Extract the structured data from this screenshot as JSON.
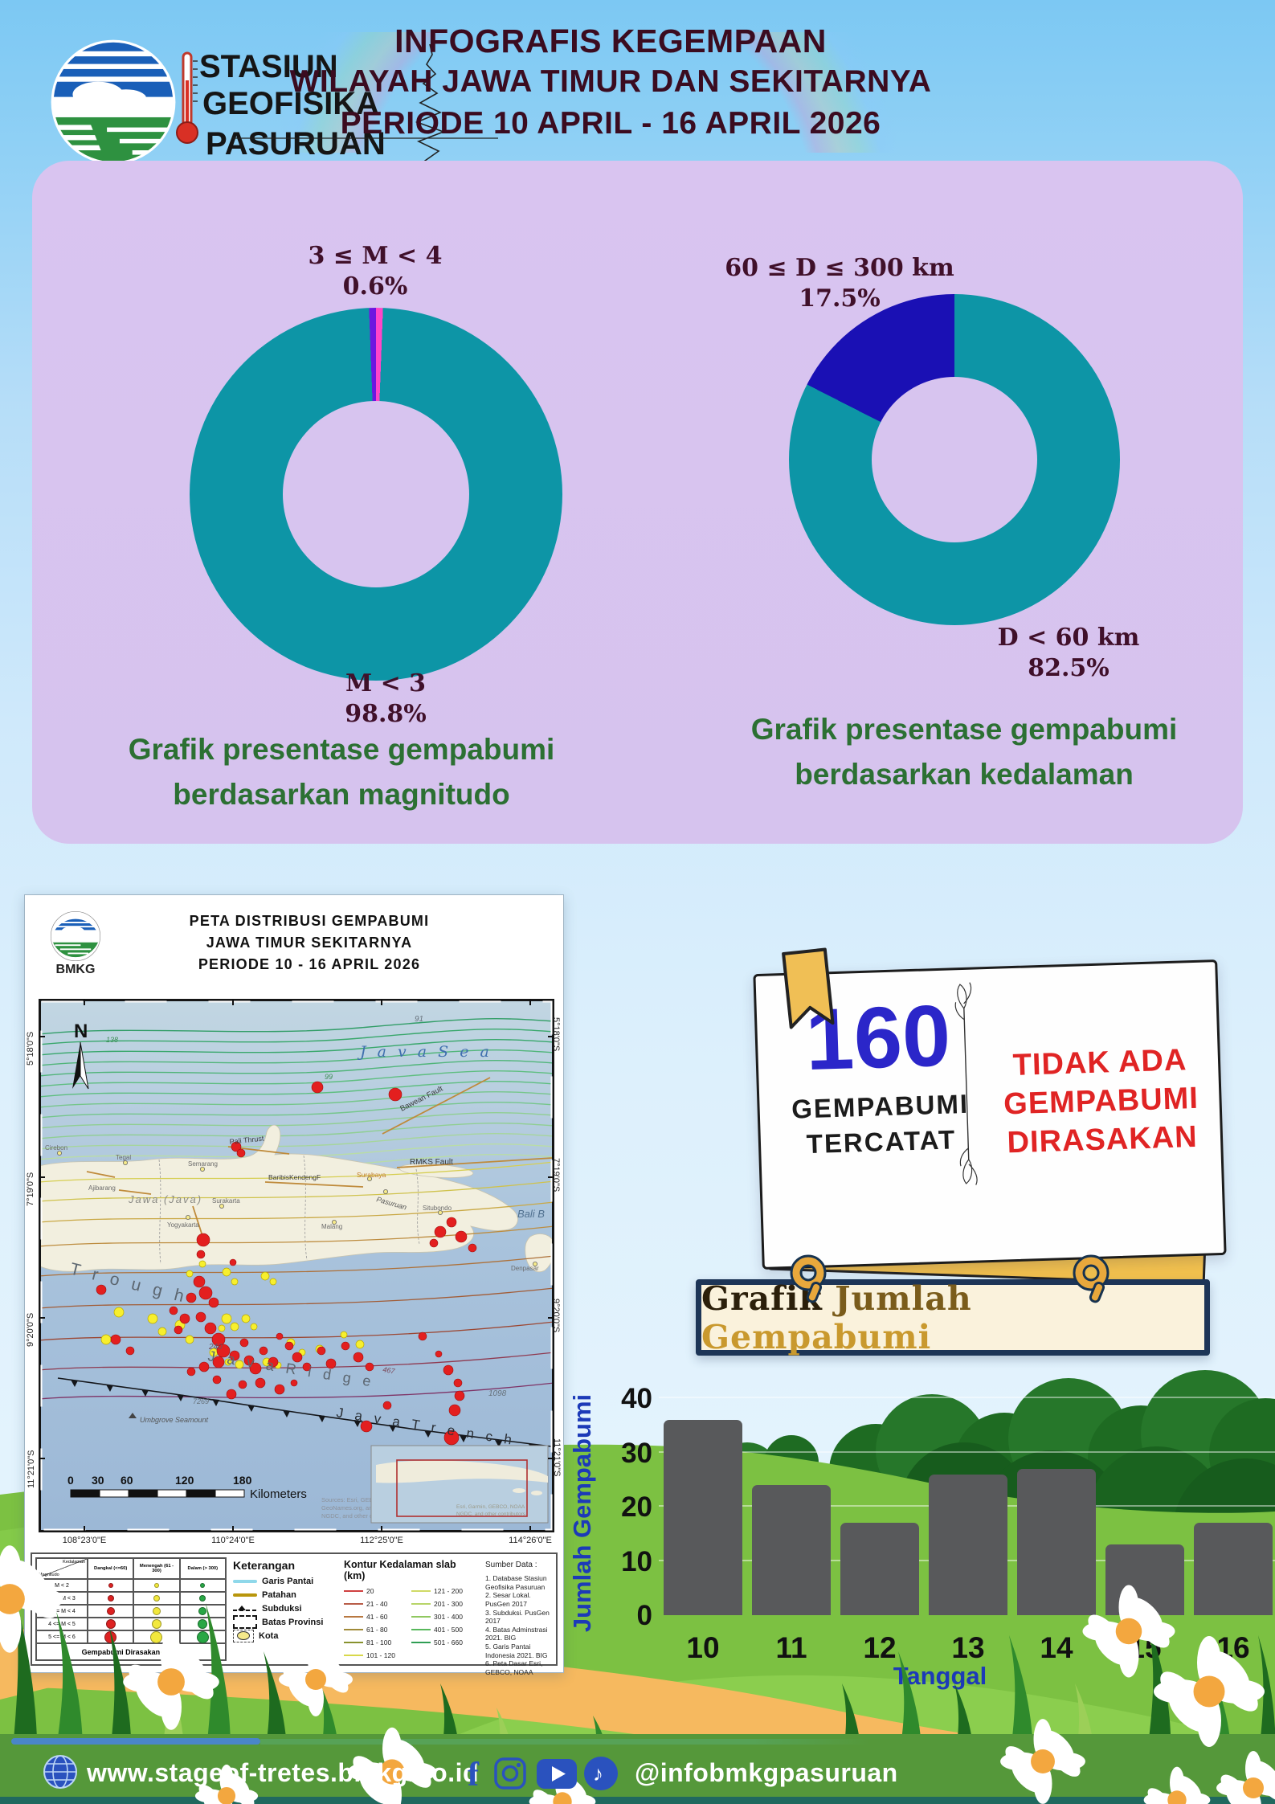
{
  "header": {
    "logo_text": "BMKG",
    "station": {
      "line1": "STASIUN",
      "line2": "GEOFISIKA",
      "line3": "PASURUAN"
    },
    "title": {
      "line1": "INFOGRAFIS KEGEMPAAN",
      "line2": "WILAYAH JAWA TIMUR DAN SEKITARNYA",
      "line3": "PERIODE 10 APRIL - 16 APRIL 2026"
    }
  },
  "donut_panel": {
    "magnitude": {
      "label_top_line1": "3 ≤ M < 4",
      "label_top_line2": "0.6%",
      "label_bottom_line1": "M < 3",
      "label_bottom_line2": "98.8%",
      "caption_line1": "Grafik presentase gempabumi",
      "caption_line2": "berdasarkan magnitudo"
    },
    "depth": {
      "label_top_line1": "60 ≤ D ≤ 300 km",
      "label_top_line2": "17.5%",
      "label_bottom_line1": "D < 60 km",
      "label_bottom_line2": "82.5%",
      "caption_line1": "Grafik presentase gempabumi",
      "caption_line2": "berdasarkan kedalaman"
    }
  },
  "map": {
    "logo_text": "BMKG",
    "title_line1": "PETA DISTRIBUSI GEMPABUMI",
    "title_line2": "JAWA TIMUR SEKITARNYA",
    "title_line3": "PERIODE 10 - 16 APRIL 2026",
    "compass": "N",
    "sea_label": "J a v a   S e a",
    "labels": {
      "bawean": "Bawean Fault",
      "rmks": "RMKS Fault",
      "pali": "Pali Thrust",
      "kendeng": "BaribisKendengF",
      "jawa": "Jawa (Java)",
      "trough": "T r o u g h",
      "ridge": "J a v a   R i d g e",
      "trench": "J a v a   T r e n c h",
      "seamount": "Umbgrove Seamount",
      "bali": "Bali B",
      "pasuruan": "Pasuruan"
    },
    "cities": [
      "Cirebon",
      "Tegal",
      "Ajibarang",
      "Semarang",
      "Surakarta",
      "Yogyakarta",
      "Malang",
      "Surabaya",
      "Situbondo",
      "Denpasar"
    ],
    "numbers": {
      "n91": "91",
      "n138": "138",
      "n99": "99",
      "n240": "240",
      "n467": "467",
      "n1098": "1098",
      "n7269": "7269"
    },
    "lat_labels": [
      "5°18'0\"S",
      "7°19'0\"S",
      "9°20'0\"S",
      "11°21'0\"S"
    ],
    "lon_labels": [
      "108°23'0\"E",
      "110°24'0\"E",
      "112°25'0\"E",
      "114°26'0\"E"
    ],
    "scalebar": {
      "t0": "0",
      "t1": "30",
      "t2": "60",
      "t3": "120",
      "t4": "180",
      "unit": "Kilometers"
    },
    "sources_note_1": "Sources: Esri, GEBCO,",
    "sources_note_2": "GeoNames.org, and",
    "sources_note_3": "NGDC, and other co",
    "inset_note_1": "Esri, Garmin, GEBCO, NOAA",
    "inset_note_2": "NGDC, and other contributors",
    "legend": {
      "table": {
        "corner_top": "Kedalaman",
        "corner_bottom": "Magnitudo",
        "columns": [
          "Dangkal (<=60)",
          "Menengah (61 - 300)",
          "Dalam (> 300)"
        ],
        "rows": [
          "M < 2",
          "2 <= M < 3",
          "3 <= M < 4",
          "4 <= M < 5",
          "5 <= M < 6"
        ],
        "colors": [
          "#dd2222",
          "#f2e83c",
          "#28a745"
        ],
        "felt_label": "Gempabumi Dirasakan"
      },
      "keterangan": {
        "title": "Keterangan",
        "items": [
          "Garis Pantai",
          "Patahan",
          "Subduksi",
          "Batas Provinsi",
          "Kota"
        ]
      },
      "kontur": {
        "title": "Kontur Kedalaman slab (km)",
        "col1": [
          {
            "label": "20",
            "color": "#d04040"
          },
          {
            "label": "21 - 40",
            "color": "#b85c48"
          },
          {
            "label": "41 - 60",
            "color": "#b87840"
          },
          {
            "label": "61 - 80",
            "color": "#a08a38"
          },
          {
            "label": "81 - 100",
            "color": "#88922e"
          },
          {
            "label": "101 - 120",
            "color": "#d8d84a"
          }
        ],
        "col2": [
          {
            "label": "121 - 200",
            "color": "#d0da66"
          },
          {
            "label": "201 - 300",
            "color": "#b8d468"
          },
          {
            "label": "301 - 400",
            "color": "#90c860"
          },
          {
            "label": "401 - 500",
            "color": "#58b85c"
          },
          {
            "label": "501 - 660",
            "color": "#2f9e54"
          }
        ]
      },
      "sumber": {
        "title": "Sumber Data :",
        "items": [
          "1. Database Stasiun Geofisika Pasuruan",
          "2. Sesar Lokal. PusGen 2017",
          "3. Subduksi. PusGen 2017",
          "4. Batas Adminstrasi 2021. BIG",
          "5. Garis Pantai Indonesia 2021. BIG",
          "6. Peta Dasar Esri, GEBCO, NOAA"
        ]
      }
    }
  },
  "stats_card": {
    "count": "160",
    "count_caption_line1": "GEMPABUMI",
    "count_caption_line2": "TERCATAT",
    "note_line1": "TIDAK ADA",
    "note_line2": "GEMPABUMI",
    "note_line3": "DIRASAKAN"
  },
  "bar_banner": {
    "word1": "Grafik",
    "word2": "Jumlah",
    "word3": "Gempabumi"
  },
  "footer": {
    "website": "www.stageof-tretes.bmkg.go.id",
    "handle": "@infobmkgpasuruan"
  },
  "chart_data": [
    {
      "type": "pie",
      "title": "Grafik presentase gempabumi berdasarkan magnitudo",
      "slices": [
        {
          "label": "3 ≤ M < 4",
          "value": 0.6,
          "color": "#ff45c8"
        },
        {
          "label": "M < 3",
          "value": 98.8,
          "color": "#0d95a6"
        },
        {
          "label": "",
          "value": 0.6,
          "color": "#6d16e0"
        }
      ],
      "legend_position": "labels-outside"
    },
    {
      "type": "pie",
      "title": "Grafik presentase gempabumi berdasarkan kedalaman",
      "slices": [
        {
          "label": "D < 60 km",
          "value": 82.5,
          "color": "#0d95a6"
        },
        {
          "label": "60 ≤ D ≤ 300 km",
          "value": 17.5,
          "color": "#1a10b4"
        }
      ],
      "legend_position": "labels-outside"
    },
    {
      "type": "bar",
      "title": "Grafik Jumlah Gempabumi",
      "xlabel": "Tanggal",
      "ylabel": "Jumlah Gempabumi",
      "categories": [
        "10",
        "11",
        "12",
        "13",
        "14",
        "15",
        "16"
      ],
      "values": [
        36,
        24,
        17,
        26,
        27,
        13,
        17
      ],
      "ylim": [
        0,
        40
      ],
      "yticks": [
        0,
        10,
        20,
        30,
        40
      ],
      "bar_color": "#58595b",
      "grid": true
    }
  ]
}
